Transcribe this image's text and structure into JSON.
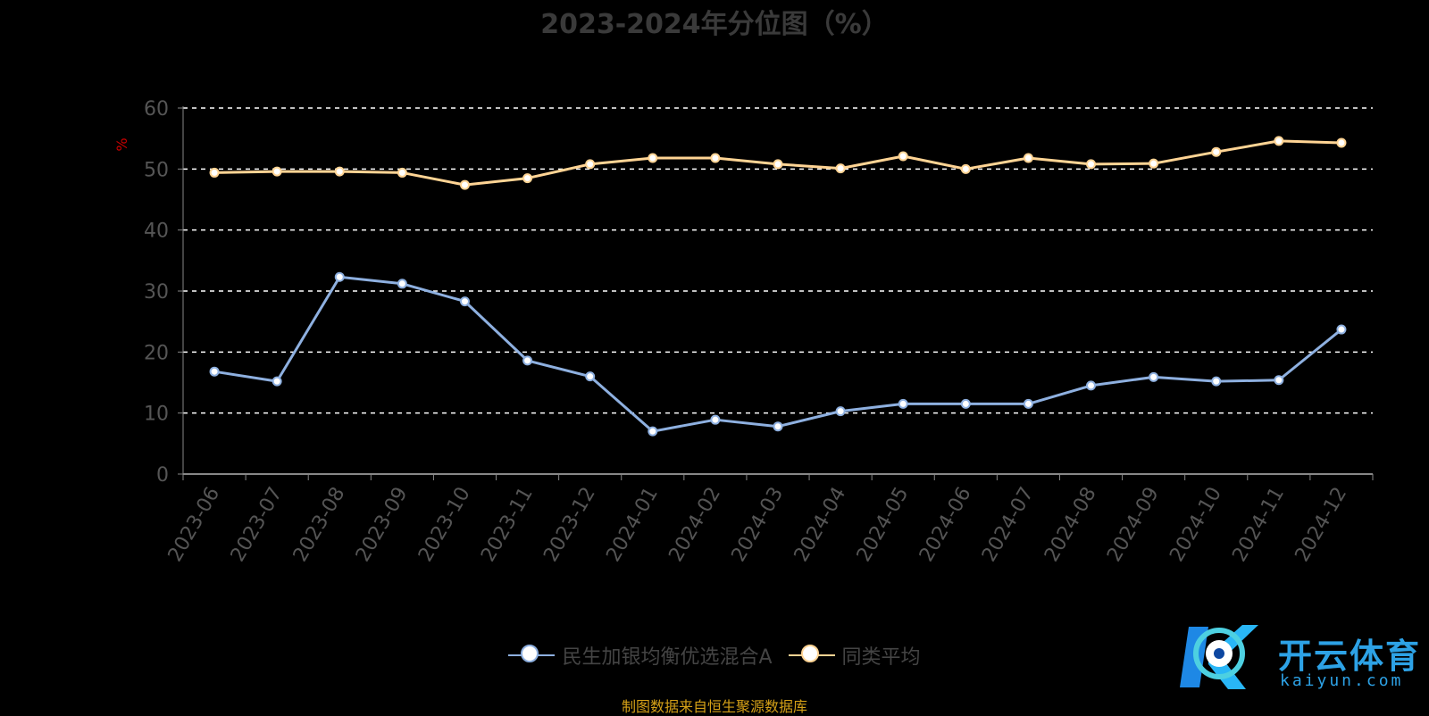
{
  "chart_data": {
    "type": "line",
    "title": "2023-2024年分位图（%）",
    "ylabel": "%",
    "ylim": [
      0,
      60
    ],
    "yticks": [
      0,
      10,
      20,
      30,
      40,
      50,
      60
    ],
    "grid": true,
    "legend_position": "bottom",
    "categories": [
      "2023-06",
      "2023-07",
      "2023-08",
      "2023-09",
      "2023-10",
      "2023-11",
      "2023-12",
      "2024-01",
      "2024-02",
      "2024-03",
      "2024-04",
      "2024-05",
      "2024-06",
      "2024-07",
      "2024-08",
      "2024-09",
      "2024-10",
      "2024-11",
      "2024-12"
    ],
    "series": [
      {
        "name": "民生加银均衡优选混合A",
        "color": "#8eb0e0",
        "values": [
          16.8,
          15.2,
          32.3,
          31.2,
          28.3,
          18.6,
          16.0,
          7.0,
          8.9,
          7.8,
          10.3,
          11.5,
          11.5,
          11.5,
          14.5,
          15.9,
          15.2,
          15.4,
          23.7
        ]
      },
      {
        "name": "同类平均",
        "color": "#ffd494",
        "values": [
          49.4,
          49.6,
          49.6,
          49.4,
          47.4,
          48.5,
          50.8,
          51.8,
          51.8,
          50.8,
          50.1,
          52.1,
          50.0,
          51.8,
          50.8,
          50.9,
          52.8,
          54.6,
          54.3
        ]
      }
    ]
  },
  "footer": {
    "source": "制图数据来自恒生聚源数据库"
  },
  "logo": {
    "name": "开云体育",
    "sub": "kaiyun.com"
  },
  "colors": {
    "grid": "#ffffff",
    "axis": "#888888",
    "ylabel": "#cc0000",
    "ticks": "#555555"
  }
}
